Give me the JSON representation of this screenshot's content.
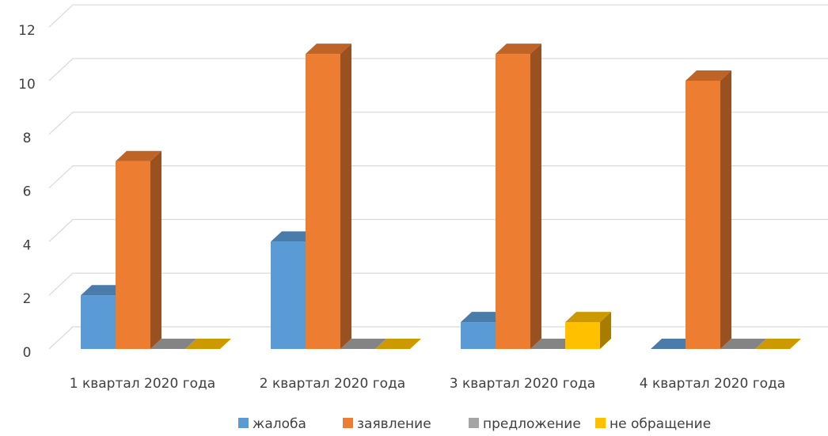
{
  "chart_data": {
    "type": "bar",
    "categories": [
      "1 квартал 2020 года",
      "2 квартал 2020 года",
      "3 квартал 2020 года",
      "4 квартал 2020 года"
    ],
    "series": [
      {
        "name": "жалоба",
        "values": [
          2,
          4,
          1,
          0
        ],
        "color": "#5B9BD5"
      },
      {
        "name": "заявление",
        "values": [
          7,
          11,
          11,
          10
        ],
        "color": "#ED7D31"
      },
      {
        "name": "предложение",
        "values": [
          0,
          0,
          0,
          0
        ],
        "color": "#A5A5A5"
      },
      {
        "name": "не обращение",
        "values": [
          0,
          0,
          1,
          0
        ],
        "color": "#FFC000"
      }
    ],
    "yticks": [
      0,
      2,
      4,
      6,
      8,
      10,
      12
    ],
    "ylim": [
      0,
      12
    ],
    "grid": true,
    "legend": "bottom",
    "style": "3d-clustered-column"
  }
}
